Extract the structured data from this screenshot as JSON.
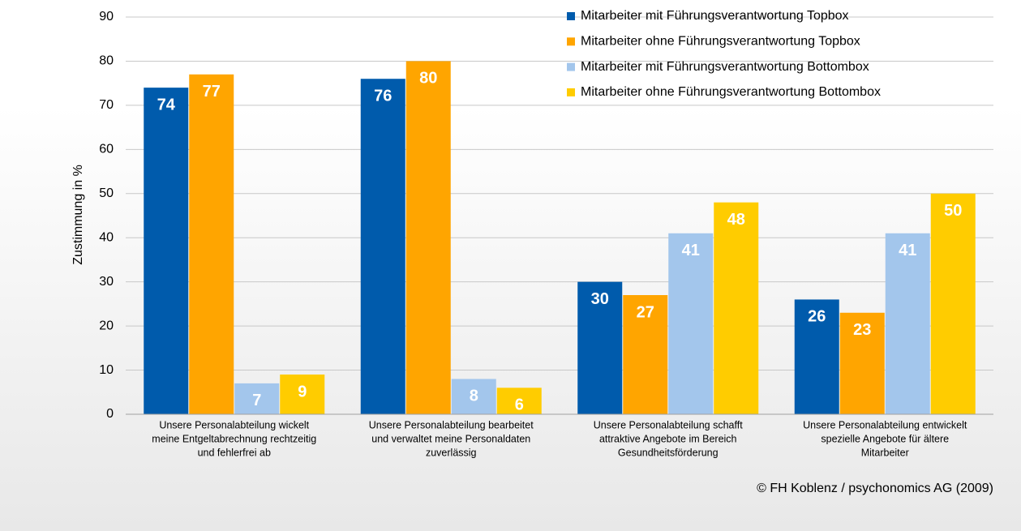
{
  "chart_data": {
    "type": "bar",
    "y_label": "Zustimmung in %",
    "note": "© FH Koblenz / psychonomics AG (2009)",
    "categories": [
      [
        "Unsere Personalabteilung wickelt",
        "meine Entgeltabrechnung rechtzeitig",
        "und fehlerfrei ab"
      ],
      [
        "Unsere Personalabteilung bearbeitet",
        "und verwaltet meine Personaldaten",
        "zuverlässig"
      ],
      [
        "Unsere Personalabteilung schafft",
        "attraktive Angebote im Bereich",
        "Gesundheitsförderung"
      ],
      [
        "Unsere Personalabteilung entwickelt",
        "spezielle Angebote für ältere",
        "Mitarbeiter"
      ]
    ],
    "series": [
      {
        "name": "Mitarbeiter mit Führungsverantwortung Topbox",
        "color": "#005bac",
        "values": [
          74,
          76,
          30,
          26
        ]
      },
      {
        "name": "Mitarbeiter ohne Führungsverantwortung Topbox",
        "color": "#ffa500",
        "values": [
          77,
          80,
          27,
          23
        ]
      },
      {
        "name": "Mitarbeiter mit Führungsverantwortung Bottombox",
        "color": "#a3c6ec",
        "values": [
          7,
          8,
          41,
          41
        ]
      },
      {
        "name": "Mitarbeiter ohne Führungsverantwortung Bottombox",
        "color": "#ffcc00",
        "values": [
          9,
          6,
          48,
          50
        ]
      }
    ],
    "ylim": [
      0,
      90
    ],
    "yticks": [
      0,
      10,
      20,
      30,
      40,
      50,
      60,
      70,
      80,
      90
    ],
    "grid": true,
    "legend": "top-right"
  }
}
